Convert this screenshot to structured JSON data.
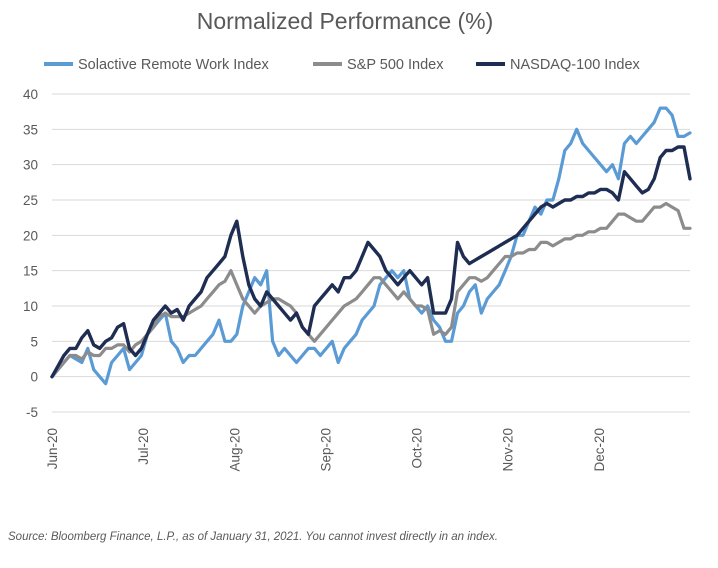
{
  "chart_data": {
    "type": "line",
    "title": "Normalized Performance (%)",
    "xlabel": "",
    "ylabel": "",
    "ylim": [
      -5,
      40
    ],
    "yticks": [
      -5,
      0,
      5,
      10,
      15,
      20,
      25,
      30,
      35,
      40
    ],
    "x_tick_labels": [
      "Jun-20",
      "Jul-20",
      "Aug-20",
      "Sep-20",
      "Oct-20",
      "Nov-20",
      "Dec-20"
    ],
    "x": [
      0,
      2,
      4,
      6,
      8,
      10,
      12,
      14,
      16,
      18,
      20,
      22,
      24,
      26,
      28,
      30,
      32,
      34,
      36,
      38,
      40,
      42,
      44,
      46,
      48,
      50,
      52,
      54,
      56,
      58,
      60,
      62,
      64,
      66,
      68,
      70,
      72,
      74,
      76,
      78,
      80,
      82,
      84,
      86,
      88,
      90,
      92,
      94,
      96,
      98,
      100,
      102,
      104,
      106,
      108,
      110,
      112,
      114,
      116,
      118,
      120,
      122,
      124,
      126,
      128,
      130,
      132,
      134,
      136,
      138,
      140,
      142,
      144,
      146,
      148,
      150,
      152,
      154,
      156,
      158,
      160,
      162,
      164,
      166,
      168,
      170,
      172,
      174,
      176,
      178,
      180,
      182,
      184,
      186,
      188,
      190,
      192,
      194,
      196,
      198,
      200,
      202,
      204,
      206,
      208,
      210,
      212,
      214
    ],
    "grid": true,
    "legend_position": "top",
    "series": [
      {
        "name": "Solactive Remote Work Index",
        "color": "#5b9bd5",
        "values": [
          0,
          1,
          2,
          3,
          2.5,
          2,
          4,
          1,
          0,
          -1,
          2,
          3,
          4,
          1,
          2,
          3,
          6,
          7,
          8,
          9,
          5,
          4,
          2,
          3,
          3,
          4,
          5,
          6,
          8,
          5,
          5,
          6,
          10,
          12,
          14,
          13,
          15,
          5,
          3,
          4,
          3,
          2,
          3,
          4,
          4,
          3,
          4,
          5,
          2,
          4,
          5,
          6,
          8,
          9,
          10,
          13,
          14,
          15,
          14,
          15,
          11,
          10,
          9,
          10,
          8,
          7,
          5,
          5,
          9,
          10,
          12,
          13,
          9,
          11,
          12,
          13,
          15,
          17,
          20,
          20,
          22,
          24,
          23,
          25,
          25,
          28,
          32,
          33,
          35,
          33,
          32,
          31,
          30,
          29,
          30,
          28,
          33,
          34,
          33,
          34,
          35,
          36,
          38,
          38,
          37,
          34,
          34,
          34.5
        ]
      },
      {
        "name": "S&P 500 Index",
        "color": "#8c8c8c",
        "values": [
          0,
          1,
          2,
          3,
          3,
          2.5,
          3.5,
          3,
          3,
          4,
          4,
          4.5,
          4.5,
          3.5,
          4.5,
          5,
          6,
          7,
          8.5,
          9,
          8.5,
          8.5,
          8.5,
          9,
          9.5,
          10,
          11,
          12,
          13,
          13.5,
          15,
          13,
          11,
          10,
          9,
          10,
          10.5,
          11,
          11,
          10.5,
          10,
          9,
          7,
          6,
          5,
          6,
          7,
          8,
          9,
          10,
          10.5,
          11,
          12,
          13,
          14,
          14,
          13,
          12,
          11,
          12,
          11,
          10,
          10,
          9.5,
          6,
          6.5,
          6,
          7,
          12,
          13,
          14,
          14,
          13.5,
          14,
          15,
          16,
          17,
          17,
          17.5,
          17.5,
          18,
          18,
          19,
          19,
          18.5,
          19,
          19.5,
          19.5,
          20,
          20,
          20.5,
          20.5,
          21,
          21,
          22,
          23,
          23,
          22.5,
          22,
          22,
          23,
          24,
          24,
          24.5,
          24,
          23.5,
          21,
          21
        ]
      },
      {
        "name": "NASDAQ-100 Index",
        "color": "#1f2d52",
        "values": [
          0,
          1.5,
          3,
          4,
          4,
          5.5,
          6.5,
          4.5,
          4,
          5,
          5.5,
          7,
          7.5,
          4,
          3,
          4,
          6,
          8,
          9,
          10,
          9,
          9.5,
          8,
          10,
          11,
          12,
          14,
          15,
          16,
          17,
          20,
          22,
          17,
          13,
          11,
          10,
          12,
          11,
          10,
          9,
          8,
          9,
          7,
          6,
          10,
          11,
          12,
          13,
          12,
          14,
          14,
          15,
          17,
          19,
          18,
          17,
          15,
          14,
          13,
          14,
          15,
          14,
          13,
          14,
          9,
          9,
          9,
          11,
          19,
          17,
          16,
          16.5,
          17,
          17.5,
          18,
          18.5,
          19,
          19.5,
          20,
          21,
          22,
          23,
          24,
          24.5,
          24,
          24.5,
          25,
          25,
          25.5,
          25.5,
          26,
          26,
          26.5,
          26.5,
          26,
          25,
          29,
          28,
          27,
          26,
          26.5,
          28,
          31,
          32,
          32,
          32.5,
          32.5,
          28
        ]
      }
    ]
  },
  "footer": {
    "source": "Source: Bloomberg Finance, L.P., as of January 31, 2021.  You cannot invest directly in an index."
  }
}
